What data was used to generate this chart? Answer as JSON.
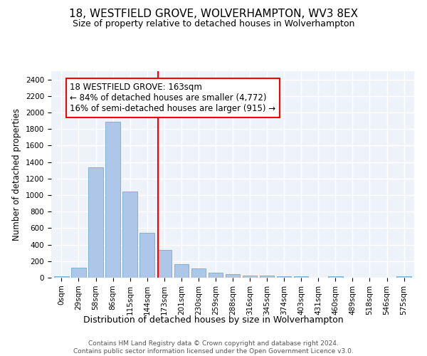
{
  "title1": "18, WESTFIELD GROVE, WOLVERHAMPTON, WV3 8EX",
  "title2": "Size of property relative to detached houses in Wolverhampton",
  "xlabel": "Distribution of detached houses by size in Wolverhampton",
  "ylabel": "Number of detached properties",
  "categories": [
    "0sqm",
    "29sqm",
    "58sqm",
    "86sqm",
    "115sqm",
    "144sqm",
    "173sqm",
    "201sqm",
    "230sqm",
    "259sqm",
    "288sqm",
    "316sqm",
    "345sqm",
    "374sqm",
    "403sqm",
    "431sqm",
    "460sqm",
    "489sqm",
    "518sqm",
    "546sqm",
    "575sqm"
  ],
  "values": [
    15,
    125,
    1340,
    1890,
    1045,
    540,
    335,
    165,
    110,
    60,
    40,
    30,
    25,
    20,
    15,
    0,
    20,
    0,
    0,
    0,
    15
  ],
  "bar_color": "#aec6e8",
  "bar_edgecolor": "#6baed6",
  "vline_color": "red",
  "annotation_line1": "18 WESTFIELD GROVE: 163sqm",
  "annotation_line2": "← 84% of detached houses are smaller (4,772)",
  "annotation_line3": "16% of semi-detached houses are larger (915) →",
  "annotation_box_color": "white",
  "annotation_box_edgecolor": "red",
  "footer1": "Contains HM Land Registry data © Crown copyright and database right 2024.",
  "footer2": "Contains public sector information licensed under the Open Government Licence v3.0.",
  "ylim": [
    0,
    2500
  ],
  "yticks": [
    0,
    200,
    400,
    600,
    800,
    1000,
    1200,
    1400,
    1600,
    1800,
    2000,
    2200,
    2400
  ],
  "background_color": "#eef2f9",
  "grid_color": "#ffffff",
  "title1_fontsize": 11,
  "title2_fontsize": 9,
  "xlabel_fontsize": 9,
  "ylabel_fontsize": 8.5,
  "tick_fontsize": 7.5,
  "annotation_fontsize": 8.5,
  "footer_fontsize": 6.5,
  "vline_x_index": 5.62
}
